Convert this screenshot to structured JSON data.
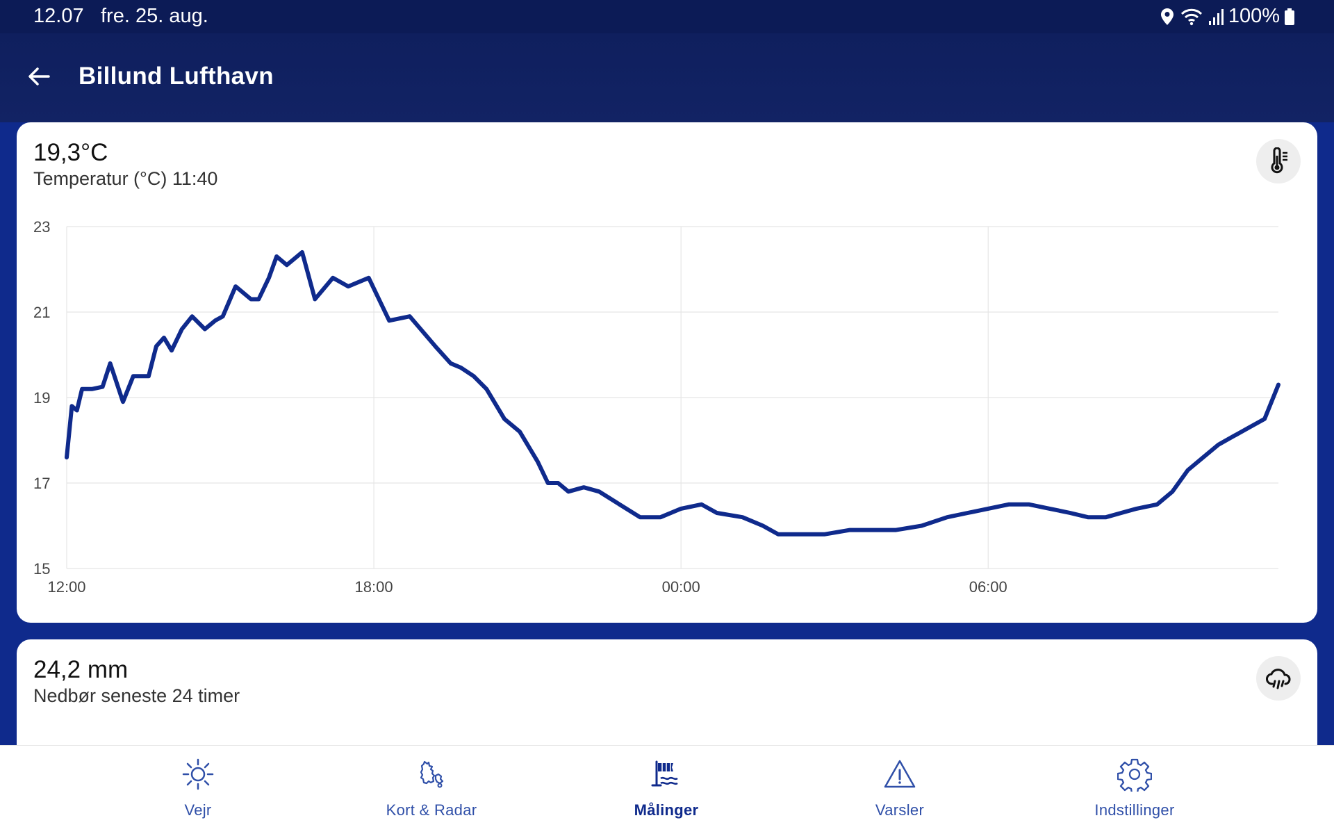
{
  "statusbar": {
    "time": "12.07",
    "date": "fre. 25. aug.",
    "battery": "100%"
  },
  "appbar": {
    "title": "Billund Lufthavn"
  },
  "temperature_card": {
    "value": "19,3°C",
    "subtitle": "Temperatur (°C) 11:40",
    "icon": "thermometer-icon"
  },
  "rain_card": {
    "value": "24,2 mm",
    "subtitle": "Nedbør seneste 24 timer",
    "icon": "cloud-rain-icon"
  },
  "chart_data": {
    "type": "line",
    "xlabel": "",
    "ylabel": "",
    "ylim": [
      15,
      23
    ],
    "yticks": [
      "23",
      "21",
      "19",
      "17",
      "15"
    ],
    "xticks": [
      "12:00",
      "18:00",
      "00:00",
      "06:00"
    ],
    "x_hours_span": 23.67,
    "color": "#0f2a8c",
    "grid": true,
    "series": [
      {
        "x": [
          0,
          0.1,
          0.2,
          0.3,
          0.5,
          0.7,
          0.85,
          1.1,
          1.3,
          1.6,
          1.75,
          1.9,
          2.05,
          2.25,
          2.45,
          2.7,
          2.9,
          3.05,
          3.3,
          3.6,
          3.75,
          3.95,
          4.1,
          4.3,
          4.6,
          4.85,
          5.2,
          5.5,
          5.9,
          6.1,
          6.3,
          6.7,
          7.2,
          7.5,
          7.7,
          7.95,
          8.2,
          8.55,
          8.85,
          9.2,
          9.4,
          9.6,
          9.8,
          10.1,
          10.4,
          10.8,
          11.2,
          11.6,
          12.0,
          12.4,
          12.7,
          13.2,
          13.6,
          13.9,
          14.3,
          14.8,
          15.3,
          15.8,
          16.2,
          16.7,
          17.2,
          17.6,
          18.0,
          18.4,
          18.8,
          19.2,
          19.6,
          19.95,
          20.3,
          20.6,
          20.9,
          21.3,
          21.6,
          21.9,
          22.2,
          22.5,
          22.8,
          23.1,
          23.4,
          23.67
        ],
        "values": [
          17.6,
          18.8,
          18.7,
          19.2,
          19.2,
          19.25,
          19.8,
          18.9,
          19.5,
          19.5,
          20.2,
          20.4,
          20.1,
          20.6,
          20.9,
          20.6,
          20.8,
          20.9,
          21.6,
          21.3,
          21.3,
          21.8,
          22.3,
          22.1,
          22.4,
          21.3,
          21.8,
          21.6,
          21.8,
          21.3,
          20.8,
          20.9,
          20.2,
          19.8,
          19.7,
          19.5,
          19.2,
          18.5,
          18.2,
          17.5,
          17.0,
          17.0,
          16.8,
          16.9,
          16.8,
          16.5,
          16.2,
          16.2,
          16.4,
          16.5,
          16.3,
          16.2,
          16.0,
          15.8,
          15.8,
          15.8,
          15.9,
          15.9,
          15.9,
          16.0,
          16.2,
          16.3,
          16.4,
          16.5,
          16.5,
          16.4,
          16.3,
          16.2,
          16.2,
          16.3,
          16.4,
          16.5,
          16.8,
          17.3,
          17.6,
          17.9,
          18.1,
          18.3,
          18.5,
          19.3
        ]
      }
    ]
  },
  "nav": {
    "items": [
      {
        "label": "Vejr",
        "icon": "sun-icon"
      },
      {
        "label": "Kort & Radar",
        "icon": "map-icon"
      },
      {
        "label": "Målinger",
        "icon": "windsock-icon"
      },
      {
        "label": "Varsler",
        "icon": "warning-icon"
      },
      {
        "label": "Indstillinger",
        "icon": "gear-icon"
      }
    ],
    "active": "Målinger"
  }
}
